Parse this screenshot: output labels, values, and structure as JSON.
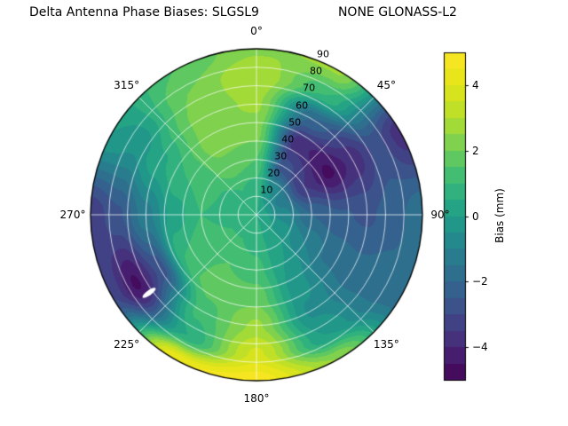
{
  "title": "Delta Antenna Phase Biases: SLGSL9                    NONE GLONASS-L2",
  "station": "SLGSL9",
  "antenna": "NONE GLONASS-L2",
  "chart_data": {
    "type": "heatmap",
    "subtype": "polar_filled_contour_skyplot",
    "title": "Delta Antenna Phase Biases: SLGSL9  NONE GLONASS-L2",
    "projection": "polar",
    "theta_zero_location": "N",
    "theta_direction": "clockwise",
    "angle_ticks": [
      {
        "deg": 0,
        "label": "0°"
      },
      {
        "deg": 45,
        "label": "45°"
      },
      {
        "deg": 90,
        "label": "90°"
      },
      {
        "deg": 135,
        "label": "135°"
      },
      {
        "deg": 180,
        "label": "180°"
      },
      {
        "deg": 225,
        "label": "225°"
      },
      {
        "deg": 270,
        "label": "270°"
      },
      {
        "deg": 315,
        "label": "315°"
      }
    ],
    "radial_ticks": [
      10,
      20,
      30,
      40,
      50,
      60,
      70,
      80,
      90
    ],
    "radial_tick_angle_deg": 22.5,
    "radial_max": 90,
    "azimuth_deg": [
      0,
      30,
      60,
      90,
      120,
      150,
      180,
      210,
      240,
      270,
      300,
      330
    ],
    "radius_deg": [
      0,
      15,
      30,
      45,
      60,
      75,
      90
    ],
    "bias_mm": [
      [
        0.5,
        0.5,
        0.5,
        0.5,
        0.5,
        0.5,
        0.5,
        0.5,
        0.5,
        0.5,
        0.5,
        0.5
      ],
      [
        0.8,
        -0.5,
        -1.2,
        -0.8,
        -0.2,
        0.3,
        0.8,
        1.0,
        1.0,
        0.8,
        0.8,
        1.0
      ],
      [
        1.5,
        -2.8,
        -3.5,
        -2.0,
        -1.0,
        0.0,
        1.2,
        1.5,
        1.3,
        1.0,
        1.2,
        1.8
      ],
      [
        2.2,
        -3.8,
        -4.6,
        -2.4,
        -1.6,
        -0.3,
        1.8,
        1.8,
        1.0,
        0.2,
        1.0,
        2.3
      ],
      [
        2.6,
        -2.0,
        -3.8,
        -2.6,
        -1.8,
        -0.6,
        2.6,
        1.2,
        -2.8,
        -1.2,
        0.4,
        2.2
      ],
      [
        3.0,
        1.0,
        -2.8,
        -2.2,
        -1.8,
        0.0,
        3.6,
        0.5,
        -4.6,
        -2.6,
        -0.4,
        2.0
      ],
      [
        2.4,
        2.6,
        -3.8,
        -1.6,
        -1.8,
        2.5,
        4.8,
        4.5,
        -3.0,
        -3.4,
        0.0,
        1.5
      ]
    ],
    "levels_step_mm": 0.5,
    "vmin": -5,
    "vmax": 5,
    "colormap": "viridis",
    "grid": true,
    "grid_color": "#ffffff",
    "masked_point": {
      "azimuth_deg": 234,
      "zenith_deg": 72
    },
    "colorbar": {
      "label": "Bias (mm)",
      "ticks": [
        4,
        2,
        0,
        -2,
        -4
      ],
      "position": "right"
    }
  }
}
